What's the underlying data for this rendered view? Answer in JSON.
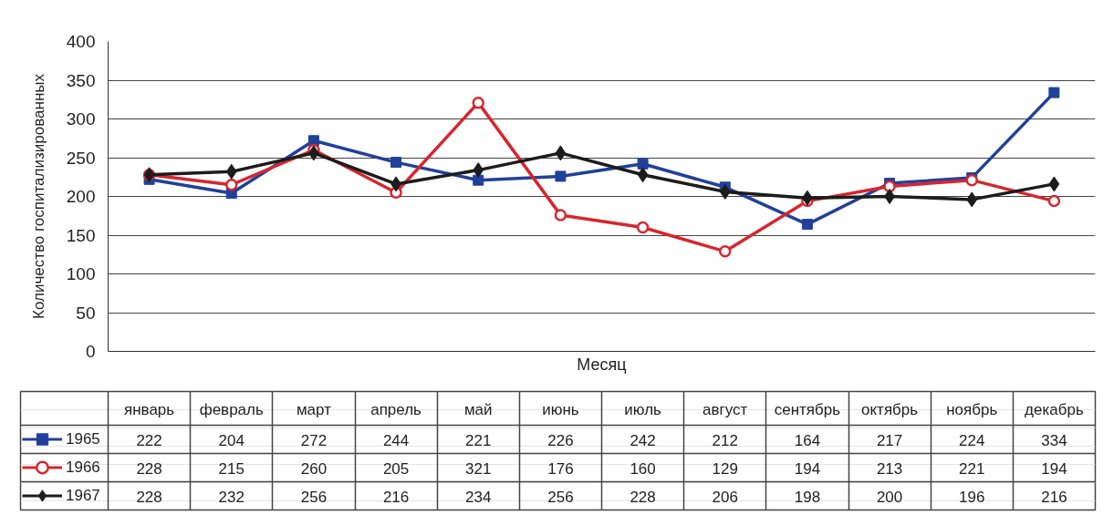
{
  "chart_data": {
    "type": "line",
    "xlabel": "Месяц",
    "ylabel": "Количество госпитализированных",
    "categories": [
      "январь",
      "февраль",
      "март",
      "апрель",
      "май",
      "июнь",
      "июль",
      "август",
      "сентябрь",
      "октябрь",
      "ноябрь",
      "декабрь"
    ],
    "series": [
      {
        "name": "1965",
        "color": "#21409a",
        "marker": "square",
        "values": [
          222,
          204,
          272,
          244,
          221,
          226,
          242,
          212,
          164,
          217,
          224,
          334
        ]
      },
      {
        "name": "1966",
        "color": "#d7262e",
        "marker": "circle",
        "values": [
          228,
          215,
          260,
          205,
          321,
          176,
          160,
          129,
          194,
          213,
          221,
          194
        ]
      },
      {
        "name": "1967",
        "color": "#1c1c1c",
        "marker": "diamond",
        "values": [
          228,
          232,
          256,
          216,
          234,
          256,
          228,
          206,
          198,
          200,
          196,
          216
        ]
      }
    ],
    "ylim": [
      0,
      400
    ],
    "yticks": [
      0,
      50,
      100,
      150,
      200,
      250,
      300,
      350,
      400
    ],
    "grid": "y",
    "legend": "bottom",
    "tick_labels": "y",
    "data_labels": true,
    "line_style": "solid"
  }
}
